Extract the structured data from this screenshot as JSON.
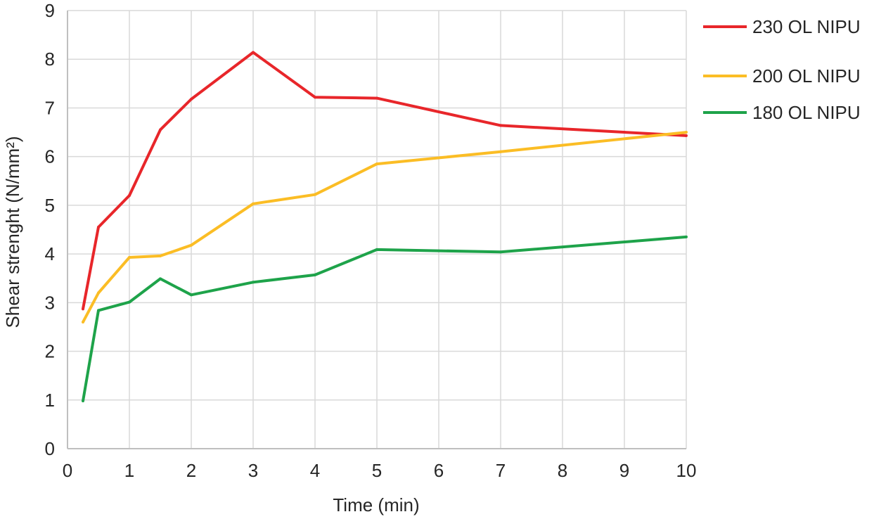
{
  "chart_data": {
    "type": "line",
    "title": "",
    "xlabel": "Time (min)",
    "ylabel": "Shear strenght (N/mm²)",
    "xlim": [
      0,
      10
    ],
    "ylim": [
      0,
      9
    ],
    "x_ticks": [
      "0",
      "1",
      "2",
      "3",
      "4",
      "5",
      "6",
      "7",
      "8",
      "9",
      "10"
    ],
    "y_ticks": [
      "0",
      "1",
      "2",
      "3",
      "4",
      "5",
      "6",
      "7",
      "8",
      "9"
    ],
    "grid": true,
    "legend_position": "right",
    "series": [
      {
        "name": "230 OL NIPU",
        "color": "#e8262a",
        "x": [
          0.25,
          0.5,
          1,
          1.5,
          2,
          3,
          4,
          5,
          7,
          10
        ],
        "y": [
          2.87,
          4.55,
          5.2,
          6.55,
          7.18,
          8.14,
          7.22,
          7.2,
          6.64,
          6.43
        ]
      },
      {
        "name": "200 OL NIPU",
        "color": "#fbbd25",
        "x": [
          0.25,
          0.5,
          1,
          1.5,
          2,
          3,
          4,
          5,
          7,
          10
        ],
        "y": [
          2.6,
          3.2,
          3.93,
          3.96,
          4.18,
          5.03,
          5.22,
          5.85,
          6.1,
          6.5
        ]
      },
      {
        "name": "180 OL NIPU",
        "color": "#1ea34a",
        "x": [
          0.25,
          0.5,
          1,
          1.5,
          2,
          3,
          4,
          5,
          7,
          10
        ],
        "y": [
          0.98,
          2.84,
          3.01,
          3.49,
          3.16,
          3.42,
          3.57,
          4.09,
          4.04,
          4.35
        ]
      }
    ]
  }
}
